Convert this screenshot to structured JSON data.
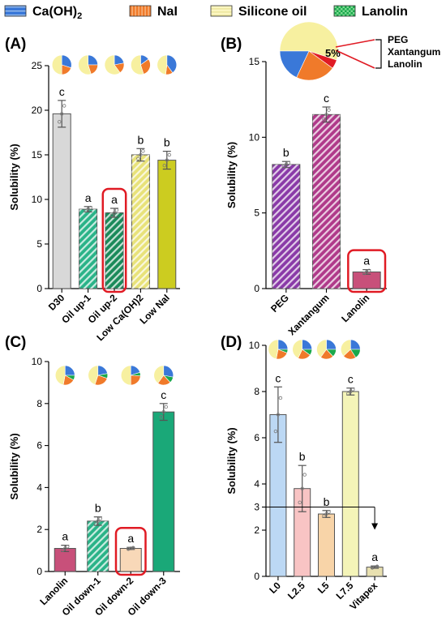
{
  "legend": [
    {
      "label": "Ca(OH)",
      "sub": "2",
      "pattern": "caoh",
      "color": "#3a78d8"
    },
    {
      "label": "NaI",
      "sub": "",
      "pattern": "nai",
      "color": "#f07a2a"
    },
    {
      "label": "Silicone oil",
      "sub": "",
      "pattern": "sil",
      "color": "#f7f0a0"
    },
    {
      "label": "Lanolin",
      "sub": "",
      "pattern": "lan",
      "color": "#1aa84c"
    }
  ],
  "pie_inset": {
    "label_pct": "5%",
    "labels": [
      "PEG",
      "Xantangum",
      "Lanolin"
    ],
    "slices": [
      {
        "name": "Silicone oil",
        "value": 55,
        "color": "#f7f0a0"
      },
      {
        "name": "PEG/Xantangum/Lanolin",
        "value": 5,
        "color": "#e01b24"
      },
      {
        "name": "NaI",
        "value": 22,
        "color": "#f07a2a"
      },
      {
        "name": "Ca(OH)2",
        "value": 18,
        "color": "#3a78d8"
      }
    ]
  },
  "chart_data": [
    {
      "panel": "(A)",
      "type": "bar",
      "ylabel": "Solubility (%)",
      "ylim": [
        0,
        25
      ],
      "yticks": [
        0,
        5,
        10,
        15,
        20,
        25
      ],
      "categories": [
        "D30",
        "Oil up-1",
        "Oil up-2",
        "Low Ca(OH)2",
        "Low NaI"
      ],
      "values": [
        19.6,
        8.9,
        8.5,
        15.0,
        14.4
      ],
      "errors": [
        1.5,
        0.3,
        0.5,
        0.7,
        1.0
      ],
      "letters": [
        "c",
        "a",
        "a",
        "b",
        "b"
      ],
      "fills": [
        "#d8d8d8",
        "#2ab388",
        "#1a8a5a",
        "#e8e27a",
        "#cccc20"
      ],
      "hatch": [
        false,
        true,
        true,
        true,
        false
      ],
      "highlight": [
        2
      ],
      "pies": [
        [
          [
            "#3a78d8",
            30
          ],
          [
            "#f07a2a",
            20
          ],
          [
            "#f7f0a0",
            50
          ]
        ],
        [
          [
            "#3a78d8",
            25
          ],
          [
            "#f07a2a",
            20
          ],
          [
            "#f7f0a0",
            55
          ]
        ],
        [
          [
            "#3a78d8",
            22
          ],
          [
            "#f07a2a",
            18
          ],
          [
            "#f7f0a0",
            60
          ]
        ],
        [
          [
            "#3a78d8",
            15
          ],
          [
            "#f07a2a",
            30
          ],
          [
            "#f7f0a0",
            55
          ]
        ],
        [
          [
            "#3a78d8",
            40
          ],
          [
            "#f07a2a",
            12
          ],
          [
            "#f7f0a0",
            48
          ]
        ]
      ]
    },
    {
      "panel": "(B)",
      "type": "bar",
      "ylabel": "Solubility (%)",
      "ylim": [
        0,
        15
      ],
      "yticks": [
        0,
        5,
        10,
        15
      ],
      "categories": [
        "PEG",
        "Xantangum",
        "Lanolin"
      ],
      "values": [
        8.2,
        11.5,
        1.1
      ],
      "errors": [
        0.2,
        0.5,
        0.15
      ],
      "letters": [
        "b",
        "c",
        "a"
      ],
      "fills": [
        "#8a3aa8",
        "#b03a8a",
        "#c8507a"
      ],
      "hatch": [
        true,
        true,
        false
      ],
      "highlight": [
        2
      ],
      "pies": []
    },
    {
      "panel": "(C)",
      "type": "bar",
      "ylabel": "Solubility (%)",
      "ylim": [
        0,
        10
      ],
      "yticks": [
        0,
        2,
        4,
        6,
        8,
        10
      ],
      "categories": [
        "Lanolin",
        "Oil down-1",
        "Oil down-2",
        "Oil down-3"
      ],
      "values": [
        1.1,
        2.4,
        1.1,
        7.6
      ],
      "errors": [
        0.15,
        0.2,
        0.05,
        0.4
      ],
      "letters": [
        "a",
        "b",
        "a",
        "c"
      ],
      "fills": [
        "#c8507a",
        "#2ab388",
        "#f8d8b8",
        "#1aa878"
      ],
      "hatch": [
        false,
        true,
        false,
        false
      ],
      "highlight": [
        2
      ],
      "pies": [
        [
          [
            "#3a78d8",
            25
          ],
          [
            "#1aa84c",
            8
          ],
          [
            "#f07a2a",
            20
          ],
          [
            "#f7f0a0",
            47
          ]
        ],
        [
          [
            "#3a78d8",
            22
          ],
          [
            "#1aa84c",
            8
          ],
          [
            "#f07a2a",
            25
          ],
          [
            "#f7f0a0",
            45
          ]
        ],
        [
          [
            "#3a78d8",
            20
          ],
          [
            "#1aa84c",
            6
          ],
          [
            "#f07a2a",
            24
          ],
          [
            "#f7f0a0",
            50
          ]
        ],
        [
          [
            "#3a78d8",
            28
          ],
          [
            "#1aa84c",
            10
          ],
          [
            "#f07a2a",
            22
          ],
          [
            "#f7f0a0",
            40
          ]
        ]
      ]
    },
    {
      "panel": "(D)",
      "type": "bar",
      "ylabel": "Solubility (%)",
      "ylim": [
        0,
        10
      ],
      "yticks": [
        0,
        2,
        3,
        4,
        6,
        8,
        10
      ],
      "categories": [
        "L0",
        "L2.5",
        "L5",
        "L7.5",
        "Vitapex"
      ],
      "values": [
        7.0,
        3.8,
        2.7,
        8.0,
        0.4
      ],
      "errors": [
        1.2,
        1.0,
        0.15,
        0.15,
        0.05
      ],
      "letters": [
        "c",
        "b",
        "b",
        "c",
        "a"
      ],
      "fills": [
        "#bcd8f4",
        "#f8c4c4",
        "#f8d4a8",
        "#f4f4b8",
        "#e8e0b0"
      ],
      "hatch": [
        false,
        false,
        false,
        false,
        false
      ],
      "highlight": [],
      "threshold": 3,
      "pies": [
        [
          [
            "#3a78d8",
            25
          ],
          [
            "#1aa84c",
            6
          ],
          [
            "#f07a2a",
            22
          ],
          [
            "#f7f0a0",
            47
          ]
        ],
        [
          [
            "#3a78d8",
            25
          ],
          [
            "#1aa84c",
            10
          ],
          [
            "#f07a2a",
            22
          ],
          [
            "#f7f0a0",
            43
          ]
        ],
        [
          [
            "#3a78d8",
            25
          ],
          [
            "#1aa84c",
            13
          ],
          [
            "#f07a2a",
            22
          ],
          [
            "#f7f0a0",
            40
          ]
        ],
        [
          [
            "#3a78d8",
            25
          ],
          [
            "#1aa84c",
            16
          ],
          [
            "#f07a2a",
            22
          ],
          [
            "#f7f0a0",
            37
          ]
        ]
      ]
    }
  ]
}
